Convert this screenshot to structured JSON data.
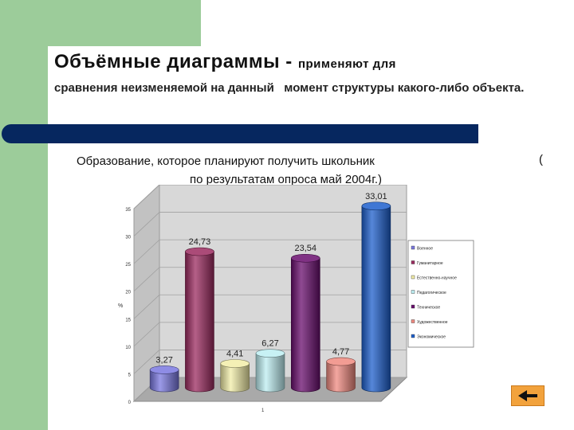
{
  "slide": {
    "heading_main": "Объёмные диаграммы",
    "heading_sep": " - ",
    "heading_tail": "применяют для",
    "description": "сравнения неизменяемой на данный   момент структуры какого-либо объекта.",
    "open_paren": "("
  },
  "colors": {
    "green": "#9ccc9a",
    "navy_bar": "#06275f",
    "nav_button": "#f2a23c"
  },
  "icons": {
    "nav": "back-arrow-icon"
  },
  "chart_data": {
    "type": "bar",
    "title": "Образование, которое планируют получить школьник",
    "subtitle": "по результатам опроса  май 2004г.)",
    "ylabel": "%",
    "xlabel": "",
    "x_tick": "1",
    "ylim": [
      0,
      35
    ],
    "yticks": [
      "0",
      "5",
      "10",
      "15",
      "20",
      "25",
      "30",
      "35"
    ],
    "grid": true,
    "legend_position": "right",
    "series": [
      {
        "name": "Военное",
        "value": 3.27,
        "label": "3,27",
        "color": "#7a78e0"
      },
      {
        "name": "Гуманитарное",
        "value": 24.73,
        "label": "24,73",
        "color": "#9c2b60"
      },
      {
        "name": "Естественно-научное",
        "value": 4.41,
        "label": "4,41",
        "color": "#f2eda8"
      },
      {
        "name": "Педагогическое",
        "value": 6.27,
        "label": "6,27",
        "color": "#bdeef2"
      },
      {
        "name": "Техническое",
        "value": 23.54,
        "label": "23,54",
        "color": "#6a0e6e"
      },
      {
        "name": "Художественное",
        "value": 4.77,
        "label": "4,77",
        "color": "#f08a80"
      },
      {
        "name": "Экономическое",
        "value": 33.01,
        "label": "33,01",
        "color": "#1d5fcc"
      }
    ]
  }
}
